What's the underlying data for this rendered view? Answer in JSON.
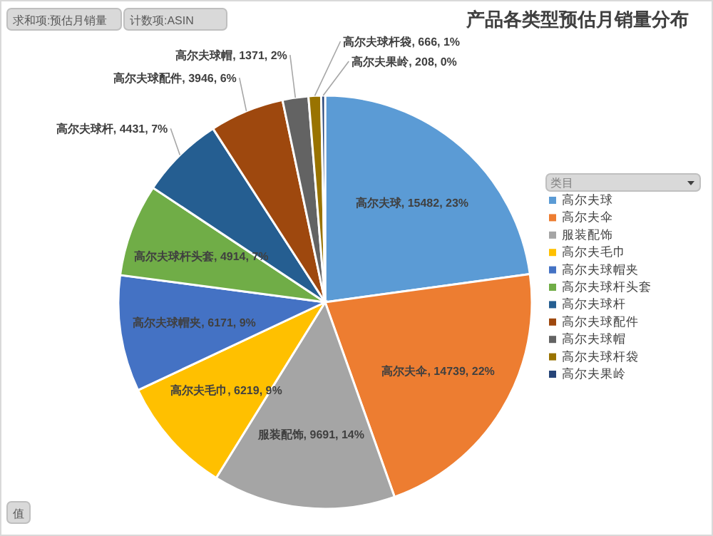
{
  "chart_data": {
    "type": "pie",
    "title": "产品各类型预估月销量分布",
    "legend_title": "类目",
    "legend": "right",
    "categories": [
      "高尔夫球",
      "高尔夫伞",
      "服装配饰",
      "高尔夫毛巾",
      "高尔夫球帽夹",
      "高尔夫球杆头套",
      "高尔夫球杆",
      "高尔夫球配件",
      "高尔夫球帽",
      "高尔夫球杆袋",
      "高尔夫果岭"
    ],
    "values": [
      15482,
      14739,
      9691,
      6219,
      6171,
      4914,
      4431,
      3946,
      1371,
      666,
      208
    ],
    "colors": [
      "#5b9bd5",
      "#ed7d31",
      "#a5a5a5",
      "#ffc000",
      "#4472c4",
      "#70ad47",
      "#255e91",
      "#9e480e",
      "#636363",
      "#997300",
      "#264478"
    ],
    "value_labels": [
      "高尔夫球, 15482, 23%",
      "高尔夫伞, 14739, 22%",
      "服装配饰, 9691, 14%",
      "高尔夫毛巾, 6219, 9%",
      "高尔夫球帽夹, 6171, 9%",
      "高尔夫球杆头套, 4914, 7%",
      "高尔夫球杆, 4431, 7%",
      "高尔夫球配件, 3946, 6%",
      "高尔夫球帽, 1371, 2%",
      "高尔夫球杆袋, 666, 1%",
      "高尔夫果岭, 208, 0%"
    ],
    "annotations": [
      "求和项:预估月销量",
      "计数项:ASIN",
      "值"
    ]
  }
}
